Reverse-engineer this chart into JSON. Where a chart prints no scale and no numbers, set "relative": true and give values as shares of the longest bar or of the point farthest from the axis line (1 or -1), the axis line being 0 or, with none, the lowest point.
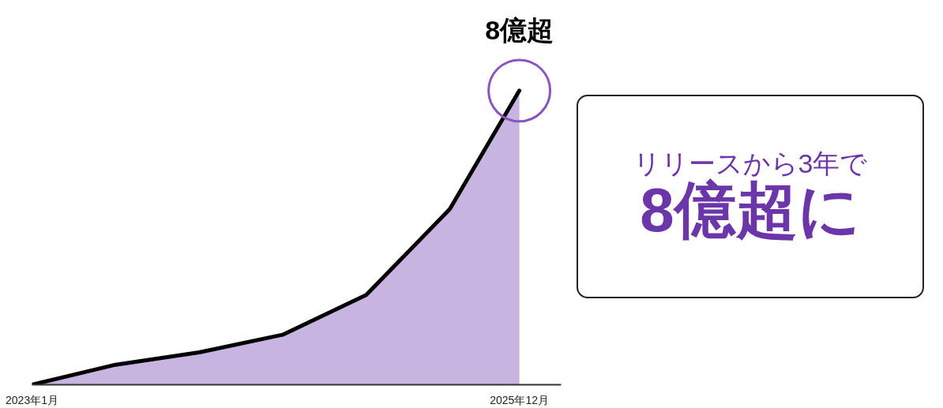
{
  "chart_data": {
    "type": "area",
    "relative": true,
    "x": [
      "2023-01",
      "2023-07",
      "2024-01",
      "2024-07",
      "2025-01",
      "2025-07",
      "2025-12"
    ],
    "xlim": [
      "2023-01",
      "2026-03"
    ],
    "xticks": [
      {
        "value": "2023-01",
        "label": "2023年1月"
      },
      {
        "value": "2025-12",
        "label": "2025年12月"
      }
    ],
    "tick_labels": "x",
    "series": [
      {
        "color": "#b49bd6",
        "values": [
          0,
          0.068,
          0.11,
          0.17,
          0.305,
          0.597,
          1
        ]
      }
    ],
    "annotations": [
      {
        "text": "8億超",
        "x": "2025-12",
        "y": 1
      },
      "リリースから3年で",
      "8億超に"
    ]
  }
}
